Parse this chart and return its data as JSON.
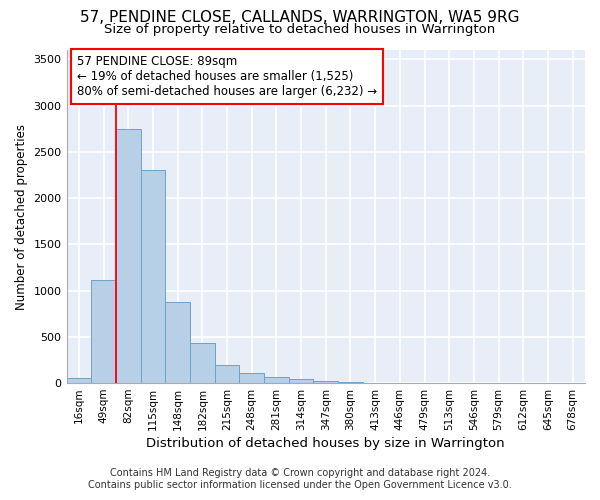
{
  "title_line1": "57, PENDINE CLOSE, CALLANDS, WARRINGTON, WA5 9RG",
  "title_line2": "Size of property relative to detached houses in Warrington",
  "xlabel": "Distribution of detached houses by size in Warrington",
  "ylabel": "Number of detached properties",
  "bar_color": "#b8cfe8",
  "bar_edge_color": "#6ba3c8",
  "bg_color": "#e8eef8",
  "grid_color": "#ffffff",
  "categories": [
    "16sqm",
    "49sqm",
    "82sqm",
    "115sqm",
    "148sqm",
    "182sqm",
    "215sqm",
    "248sqm",
    "281sqm",
    "314sqm",
    "347sqm",
    "380sqm",
    "413sqm",
    "446sqm",
    "479sqm",
    "513sqm",
    "546sqm",
    "579sqm",
    "612sqm",
    "645sqm",
    "678sqm"
  ],
  "values": [
    50,
    1115,
    2750,
    2300,
    880,
    430,
    190,
    105,
    65,
    40,
    20,
    10,
    5,
    3,
    2,
    1,
    0,
    0,
    0,
    0,
    0
  ],
  "property_label": "57 PENDINE CLOSE: 89sqm",
  "annotation_line1": "← 19% of detached houses are smaller (1,525)",
  "annotation_line2": "80% of semi-detached houses are larger (6,232) →",
  "vline_bar_index": 2,
  "footer_line1": "Contains HM Land Registry data © Crown copyright and database right 2024.",
  "footer_line2": "Contains public sector information licensed under the Open Government Licence v3.0.",
  "ylim": [
    0,
    3600
  ],
  "yticks": [
    0,
    500,
    1000,
    1500,
    2000,
    2500,
    3000,
    3500
  ]
}
